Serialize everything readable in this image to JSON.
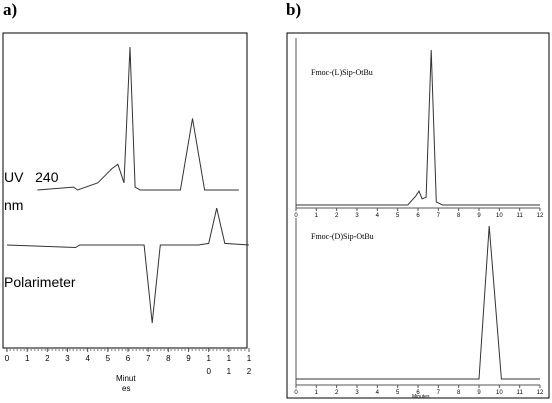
{
  "labels": {
    "panel_a": "a)",
    "panel_b": "b)"
  },
  "panel_a": {
    "uv_label_line1": "UV   240",
    "uv_label_line2": "nm",
    "polarimeter_label": "Polarimeter",
    "xlabel_line1": "Minut",
    "xlabel_line2": "es",
    "tick_top": [
      "0",
      "1",
      "2",
      "3",
      "4",
      "5",
      "6",
      "7",
      "8",
      "9",
      "1",
      "1",
      "1"
    ],
    "tick_bottom": [
      "",
      "",
      "",
      "",
      "",
      "",
      "",
      "",
      "",
      "",
      "0",
      "1",
      "2"
    ]
  },
  "panel_b": {
    "top_title": "Fmoc-(L)Sip-OtBu",
    "bottom_title": "Fmoc-(D)Sip-OtBu",
    "xlabel": "Minutes",
    "ticks": [
      "0",
      "1",
      "2",
      "3",
      "4",
      "5",
      "6",
      "7",
      "8",
      "9",
      "10",
      "11",
      "12"
    ]
  },
  "chart_data": [
    {
      "type": "line",
      "title": "",
      "xlabel": "Minutes",
      "ylabel": "",
      "xlim": [
        0,
        12
      ],
      "series": [
        {
          "name": "UV 240 nm",
          "x": [
            1.5,
            3.3,
            3.5,
            4.5,
            5.0,
            5.2,
            5.5,
            5.8,
            6.1,
            6.35,
            6.6,
            8.6,
            9.2,
            9.8,
            11.5
          ],
          "y": [
            0,
            0.02,
            0,
            0.05,
            0.12,
            0.15,
            0.18,
            0.05,
            1.0,
            0.02,
            0,
            0,
            0.5,
            0,
            0
          ]
        },
        {
          "name": "Polarimeter",
          "x": [
            0,
            3.4,
            3.6,
            6.0,
            6.8,
            7.2,
            7.6,
            9.5,
            10.0,
            10.4,
            10.8,
            12.0
          ],
          "y": [
            0,
            -0.03,
            0,
            0,
            0,
            -0.95,
            0,
            0,
            0.02,
            0.45,
            0.02,
            0
          ]
        }
      ]
    },
    {
      "type": "line",
      "title": "Fmoc-(L)Sip-OtBu",
      "xlabel": "",
      "ylabel": "",
      "xlim": [
        0,
        12
      ],
      "series": [
        {
          "x": [
            0,
            5.5,
            5.9,
            6.05,
            6.2,
            6.4,
            6.65,
            6.9,
            7.2,
            12
          ],
          "y": [
            0,
            0,
            0.06,
            0.09,
            0.04,
            0.05,
            1.0,
            0.02,
            0,
            0
          ]
        }
      ]
    },
    {
      "type": "line",
      "title": "Fmoc-(D)Sip-OtBu",
      "xlabel": "Minutes",
      "ylabel": "",
      "xlim": [
        0,
        12
      ],
      "series": [
        {
          "x": [
            0,
            9.0,
            9.5,
            10.1,
            12
          ],
          "y": [
            0,
            0,
            1.0,
            0,
            0
          ]
        }
      ]
    }
  ]
}
